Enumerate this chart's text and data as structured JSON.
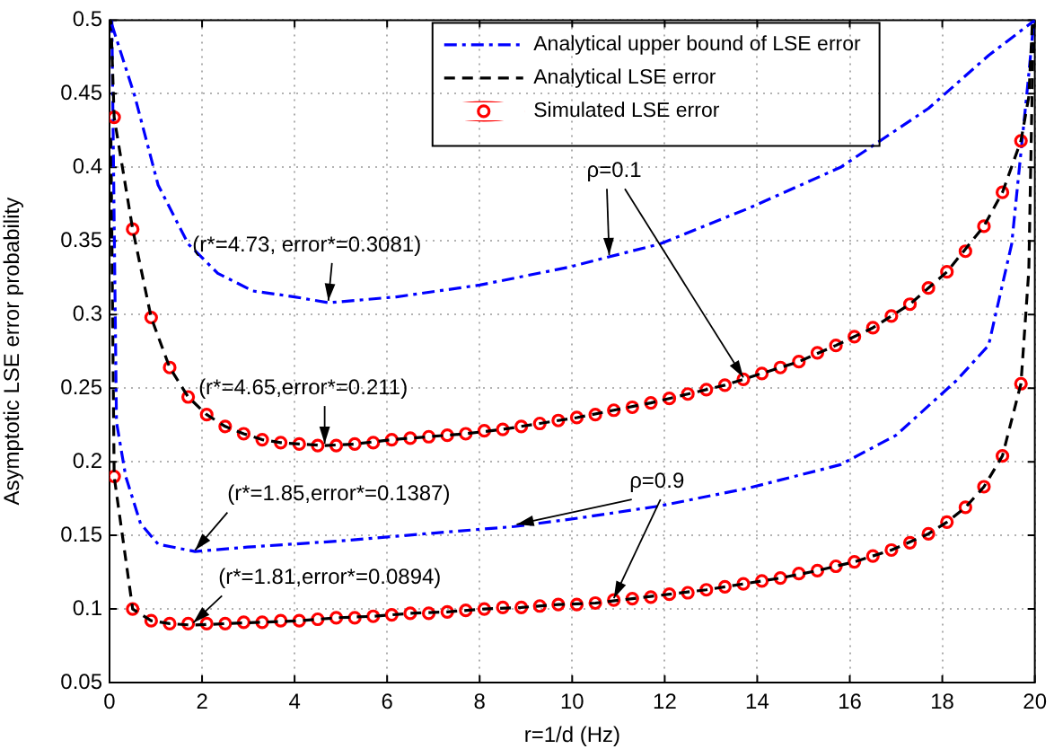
{
  "chart_data": {
    "type": "line",
    "xlabel": "r=1/d (Hz)",
    "ylabel": "Asymptotic LSE error probability",
    "xlim": [
      0,
      20
    ],
    "xticks": [
      0,
      2,
      4,
      6,
      8,
      10,
      12,
      14,
      16,
      18,
      20
    ],
    "ylim": [
      0.05,
      0.5
    ],
    "yticks": [
      0.05,
      0.1,
      0.15,
      0.2,
      0.25,
      0.3,
      0.35,
      0.4,
      0.45,
      0.5
    ],
    "grid": true,
    "legend": "top right",
    "series": [
      {
        "name": "Analytical upper bound of LSE error",
        "color": "#0000ff",
        "line_style": "dashdot",
        "marker": "none",
        "x": [
          0.05,
          0.54,
          1.05,
          1.7,
          2.34,
          3.1,
          4.0,
          4.73,
          6.2,
          8.0,
          9.9,
          11.9,
          13.8,
          15.8,
          17.7,
          19.0,
          20.0
        ],
        "values": [
          0.497,
          0.449,
          0.388,
          0.348,
          0.328,
          0.316,
          0.312,
          0.308,
          0.312,
          0.32,
          0.332,
          0.348,
          0.372,
          0.4,
          0.44,
          0.476,
          0.5
        ]
      },
      {
        "name": "Analytical LSE error",
        "color": "#000000",
        "line_style": "dashed",
        "marker": "none",
        "x": [
          0.03,
          0.1,
          0.5,
          0.9,
          1.3,
          1.7,
          2.1,
          2.5,
          2.9,
          3.3,
          3.7,
          4.1,
          4.65,
          5.3,
          6.1,
          6.9,
          7.7,
          8.5,
          9.3,
          10.1,
          10.9,
          11.7,
          12.5,
          13.3,
          14.1,
          14.9,
          15.7,
          16.5,
          17.3,
          18.1,
          18.9,
          19.3,
          19.7,
          19.87,
          19.95
        ],
        "values": [
          0.5,
          0.434,
          0.358,
          0.298,
          0.264,
          0.244,
          0.232,
          0.224,
          0.219,
          0.215,
          0.213,
          0.212,
          0.211,
          0.212,
          0.215,
          0.217,
          0.219,
          0.222,
          0.226,
          0.23,
          0.235,
          0.24,
          0.246,
          0.252,
          0.26,
          0.268,
          0.279,
          0.291,
          0.307,
          0.329,
          0.36,
          0.383,
          0.418,
          0.448,
          0.5
        ]
      },
      {
        "name": "Simulated LSE error",
        "type": "scatter",
        "color": "#ff0000",
        "marker": "circle",
        "x": [
          0.1,
          0.5,
          0.9,
          1.3,
          1.7,
          2.1,
          2.5,
          2.9,
          3.3,
          3.7,
          4.1,
          4.5,
          4.9,
          5.3,
          5.7,
          6.1,
          6.5,
          6.9,
          7.3,
          7.7,
          8.1,
          8.5,
          8.9,
          9.3,
          9.7,
          10.1,
          10.5,
          10.9,
          11.3,
          11.7,
          12.1,
          12.5,
          12.9,
          13.3,
          13.7,
          14.1,
          14.5,
          14.9,
          15.3,
          15.7,
          16.1,
          16.5,
          16.9,
          17.3,
          17.7,
          18.1,
          18.5,
          18.9,
          19.3,
          19.7
        ],
        "values": [
          0.434,
          0.358,
          0.298,
          0.264,
          0.244,
          0.232,
          0.224,
          0.219,
          0.215,
          0.213,
          0.212,
          0.211,
          0.211,
          0.212,
          0.213,
          0.215,
          0.216,
          0.217,
          0.218,
          0.219,
          0.221,
          0.222,
          0.224,
          0.226,
          0.228,
          0.23,
          0.232,
          0.235,
          0.237,
          0.24,
          0.243,
          0.246,
          0.249,
          0.252,
          0.256,
          0.26,
          0.264,
          0.268,
          0.274,
          0.279,
          0.285,
          0.291,
          0.299,
          0.307,
          0.318,
          0.329,
          0.343,
          0.36,
          0.383,
          0.418
        ]
      },
      {
        "color": "#0000ff",
        "line_style": "dashdot",
        "marker": "none",
        "x": [
          0.05,
          0.15,
          0.35,
          0.67,
          1.05,
          1.85,
          2.98,
          4.9,
          6.8,
          8.75,
          10.2,
          11.9,
          13.8,
          15.8,
          17.0,
          18.3,
          19.0,
          19.5,
          19.85,
          19.98
        ],
        "values": [
          0.5,
          0.227,
          0.19,
          0.158,
          0.144,
          0.139,
          0.142,
          0.146,
          0.151,
          0.156,
          0.162,
          0.17,
          0.182,
          0.198,
          0.218,
          0.255,
          0.279,
          0.348,
          0.457,
          0.5
        ]
      },
      {
        "color": "#000000",
        "line_style": "dashed",
        "marker": "none",
        "x": [
          0.03,
          0.1,
          0.5,
          0.9,
          1.3,
          1.81,
          2.5,
          3.3,
          4.1,
          4.9,
          5.7,
          6.5,
          7.3,
          8.1,
          8.9,
          9.7,
          10.5,
          11.3,
          12.1,
          12.9,
          13.7,
          14.5,
          15.3,
          16.1,
          16.9,
          17.7,
          18.1,
          18.5,
          18.9,
          19.3,
          19.7,
          19.87,
          19.97
        ],
        "values": [
          0.42,
          0.19,
          0.1,
          0.092,
          0.09,
          0.089,
          0.09,
          0.091,
          0.092,
          0.094,
          0.095,
          0.097,
          0.098,
          0.1,
          0.101,
          0.103,
          0.104,
          0.107,
          0.11,
          0.113,
          0.117,
          0.121,
          0.126,
          0.132,
          0.14,
          0.151,
          0.159,
          0.169,
          0.183,
          0.204,
          0.253,
          0.33,
          0.5
        ]
      },
      {
        "type": "scatter",
        "color": "#ff0000",
        "marker": "circle",
        "x": [
          0.1,
          0.5,
          0.9,
          1.3,
          1.7,
          2.1,
          2.5,
          2.9,
          3.3,
          3.7,
          4.1,
          4.5,
          4.9,
          5.3,
          5.7,
          6.1,
          6.5,
          6.9,
          7.3,
          7.7,
          8.1,
          8.5,
          8.9,
          9.3,
          9.7,
          10.1,
          10.5,
          10.9,
          11.3,
          11.7,
          12.1,
          12.5,
          12.9,
          13.3,
          13.7,
          14.1,
          14.5,
          14.9,
          15.3,
          15.7,
          16.1,
          16.5,
          16.9,
          17.3,
          17.7,
          18.1,
          18.5,
          18.9,
          19.3,
          19.7
        ],
        "values": [
          0.19,
          0.1,
          0.092,
          0.09,
          0.09,
          0.09,
          0.09,
          0.091,
          0.091,
          0.092,
          0.092,
          0.093,
          0.094,
          0.094,
          0.095,
          0.096,
          0.097,
          0.097,
          0.098,
          0.099,
          0.1,
          0.101,
          0.101,
          0.102,
          0.103,
          0.103,
          0.104,
          0.106,
          0.107,
          0.108,
          0.11,
          0.111,
          0.113,
          0.115,
          0.117,
          0.119,
          0.121,
          0.124,
          0.126,
          0.129,
          0.132,
          0.136,
          0.14,
          0.145,
          0.151,
          0.159,
          0.169,
          0.183,
          0.204,
          0.253
        ]
      }
    ],
    "annotations": [
      {
        "text": "(r*=4.73, error*=0.3081)",
        "x": 4.73,
        "y": 0.3081
      },
      {
        "text": "(r*=4.65,error*=0.211)",
        "x": 4.65,
        "y": 0.211
      },
      {
        "text": "(r*=1.85,error*=0.1387)",
        "x": 1.85,
        "y": 0.1387
      },
      {
        "text": "(r*=1.81,error*=0.0894)",
        "x": 1.81,
        "y": 0.0894
      },
      {
        "text": "ρ=0.1",
        "x": 13.7,
        "y": 0.256
      },
      {
        "text": "ρ=0.9",
        "x": 10.9,
        "y": 0.106
      }
    ]
  }
}
